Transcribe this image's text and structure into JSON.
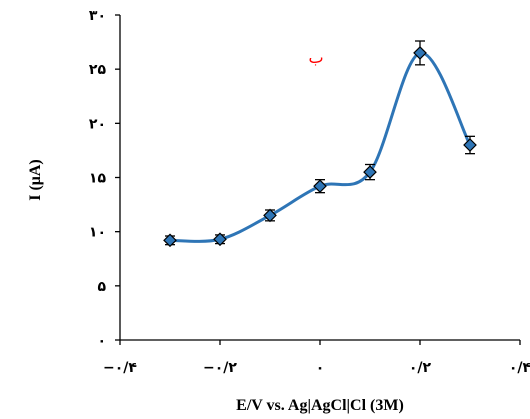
{
  "chart_data": {
    "type": "line",
    "title": "",
    "xlabel": "E/V vs. Ag|AgCl|Cl (3M)",
    "ylabel": "I (μA)",
    "xlim": [
      -0.4,
      0.4
    ],
    "ylim": [
      0,
      30
    ],
    "x_ticks": [
      -0.4,
      -0.2,
      0,
      0.2,
      0.4
    ],
    "x_tick_labels": [
      "−۰/۴",
      "−۰/۲",
      "۰",
      "۰/۲",
      "۰/۴"
    ],
    "y_ticks": [
      0,
      5,
      10,
      15,
      20,
      25,
      30
    ],
    "y_tick_labels": [
      "۰",
      "۵",
      "۱۰",
      "۱۵",
      "۲۰",
      "۲۵",
      "۳۰"
    ],
    "annotation": "ب",
    "grid": false,
    "legend": "none",
    "series": [
      {
        "x": [
          -0.3,
          -0.2,
          -0.1,
          0.0,
          0.1,
          0.2,
          0.3
        ],
        "y": [
          9.2,
          9.3,
          11.5,
          14.2,
          15.5,
          26.5,
          18.0
        ],
        "error": [
          0.4,
          0.4,
          0.5,
          0.6,
          0.7,
          1.1,
          0.8
        ],
        "line_color": "#2e75b6",
        "marker_color": "#2e75b6",
        "marker": "diamond"
      }
    ]
  }
}
